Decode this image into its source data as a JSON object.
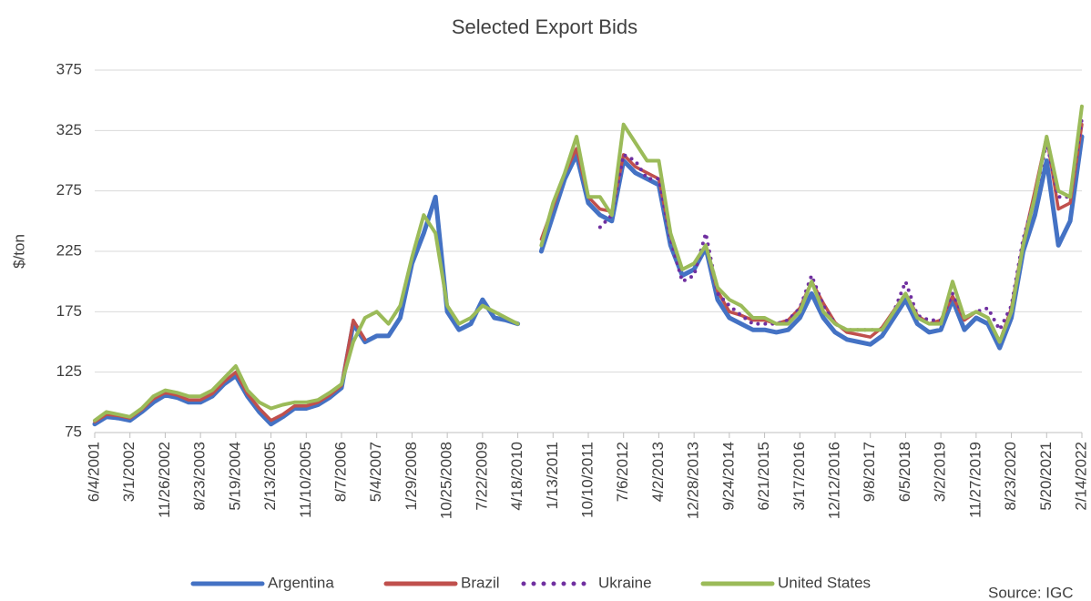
{
  "chart_data": {
    "type": "line",
    "title": "Selected Export Bids",
    "y_label": "$/ton",
    "source": "Source: IGC",
    "categories": [
      "6/4/2001",
      null,
      null,
      "3/1/2002",
      null,
      null,
      "11/26/2002",
      null,
      null,
      "8/23/2003",
      null,
      null,
      "5/19/2004",
      null,
      null,
      "2/13/2005",
      null,
      null,
      "11/10/2005",
      null,
      null,
      "8/7/2006",
      null,
      null,
      "5/4/2007",
      null,
      null,
      "1/29/2008",
      null,
      null,
      "10/25/2008",
      null,
      null,
      "7/22/2009",
      null,
      null,
      "4/18/2010",
      null,
      null,
      "1/13/2011",
      null,
      null,
      "10/10/2011",
      null,
      null,
      "7/6/2012",
      null,
      null,
      "4/2/2013",
      null,
      null,
      "12/28/2013",
      null,
      null,
      "9/24/2014",
      null,
      null,
      "6/21/2015",
      null,
      null,
      "3/17/2016",
      null,
      null,
      "12/12/2016",
      null,
      null,
      "9/8/2017",
      null,
      null,
      "6/5/2018",
      null,
      null,
      "3/2/2019",
      null,
      null,
      "11/27/2019",
      null,
      null,
      "8/23/2020",
      null,
      null,
      "5/20/2021",
      null,
      null,
      "2/14/2022"
    ],
    "series": [
      {
        "name": "Argentina",
        "color": "#4472c4",
        "style": "solid",
        "values": [
          82,
          88,
          87,
          85,
          92,
          100,
          106,
          104,
          100,
          100,
          105,
          115,
          122,
          105,
          92,
          82,
          88,
          95,
          95,
          98,
          104,
          112,
          165,
          150,
          155,
          155,
          170,
          215,
          240,
          270,
          175,
          160,
          165,
          185,
          170,
          168,
          165,
          null,
          225,
          255,
          285,
          305,
          265,
          255,
          250,
          300,
          290,
          285,
          280,
          230,
          205,
          210,
          228,
          185,
          170,
          165,
          160,
          160,
          158,
          160,
          170,
          190,
          170,
          158,
          152,
          150,
          148,
          155,
          170,
          185,
          165,
          158,
          160,
          185,
          160,
          170,
          165,
          145,
          170,
          225,
          255,
          300,
          230,
          250,
          320
        ]
      },
      {
        "name": "Brazil",
        "color": "#c0504d",
        "style": "solid",
        "values": [
          84,
          90,
          89,
          87,
          94,
          103,
          108,
          106,
          102,
          102,
          107,
          117,
          125,
          107,
          95,
          85,
          90,
          97,
          97,
          100,
          106,
          114,
          168,
          152,
          null,
          null,
          null,
          null,
          null,
          null,
          null,
          null,
          null,
          null,
          null,
          null,
          175,
          null,
          235,
          262,
          290,
          310,
          270,
          260,
          258,
          305,
          295,
          290,
          285,
          238,
          210,
          215,
          230,
          192,
          175,
          172,
          168,
          168,
          165,
          168,
          178,
          200,
          182,
          166,
          158,
          156,
          154,
          162,
          176,
          190,
          172,
          165,
          168,
          188,
          168,
          175,
          170,
          150,
          178,
          232,
          275,
          320,
          260,
          265,
          330
        ]
      },
      {
        "name": "Ukraine",
        "color": "#7030a0",
        "style": "dotted",
        "values": [
          null,
          null,
          null,
          null,
          null,
          null,
          null,
          null,
          null,
          null,
          null,
          null,
          null,
          null,
          null,
          null,
          null,
          null,
          null,
          null,
          null,
          null,
          null,
          null,
          null,
          null,
          null,
          null,
          null,
          null,
          null,
          null,
          null,
          null,
          null,
          null,
          null,
          null,
          null,
          null,
          null,
          null,
          null,
          245,
          255,
          305,
          300,
          285,
          285,
          235,
          200,
          205,
          240,
          190,
          180,
          172,
          165,
          165,
          165,
          168,
          178,
          205,
          180,
          165,
          160,
          160,
          160,
          160,
          175,
          200,
          172,
          168,
          168,
          190,
          170,
          175,
          178,
          160,
          180,
          235,
          270,
          315,
          270,
          270,
          335
        ]
      },
      {
        "name": "United States",
        "color": "#9bbb59",
        "style": "solid",
        "values": [
          85,
          92,
          90,
          88,
          95,
          105,
          110,
          108,
          105,
          105,
          110,
          120,
          130,
          110,
          100,
          95,
          98,
          100,
          100,
          102,
          108,
          115,
          150,
          170,
          175,
          165,
          180,
          220,
          255,
          240,
          180,
          165,
          170,
          180,
          175,
          170,
          165,
          null,
          230,
          265,
          290,
          320,
          270,
          270,
          255,
          330,
          315,
          300,
          300,
          240,
          210,
          215,
          230,
          195,
          185,
          180,
          170,
          170,
          165,
          165,
          175,
          200,
          175,
          165,
          160,
          160,
          160,
          160,
          175,
          190,
          170,
          165,
          165,
          200,
          170,
          175,
          170,
          150,
          175,
          230,
          270,
          320,
          275,
          270,
          345
        ]
      }
    ],
    "ylim": [
      75,
      375
    ],
    "yticks": [
      75,
      125,
      175,
      225,
      275,
      325,
      375
    ],
    "grid": true,
    "legend": "bottom"
  }
}
